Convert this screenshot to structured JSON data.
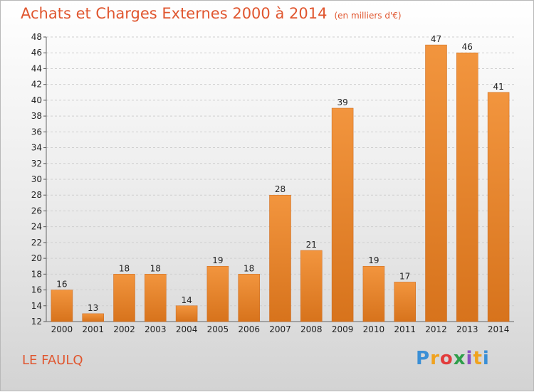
{
  "chart_data": {
    "type": "bar",
    "title": "Achats et Charges Externes 2000 à 2014",
    "subtitle": "(en milliers d'€)",
    "categories": [
      "2000",
      "2001",
      "2002",
      "2003",
      "2004",
      "2005",
      "2006",
      "2007",
      "2008",
      "2009",
      "2010",
      "2011",
      "2012",
      "2013",
      "2014"
    ],
    "values": [
      16,
      13,
      18,
      18,
      14,
      19,
      18,
      28,
      21,
      39,
      19,
      17,
      47,
      46,
      41
    ],
    "ylim": [
      12,
      48
    ],
    "yticks": [
      12,
      14,
      16,
      18,
      20,
      22,
      24,
      26,
      28,
      30,
      32,
      34,
      36,
      38,
      40,
      42,
      44,
      46,
      48
    ],
    "grid": true,
    "bar_color": "#f2953e",
    "bar_color_dark": "#d7731c"
  },
  "footer": {
    "commune": "LE FAULQ",
    "logo_text": "Proxiti",
    "logo_colors": [
      "#3a8fd6",
      "#f0a21e",
      "#e23c3c",
      "#2e9e4a",
      "#8a4fc2",
      "#f0a21e",
      "#3a8fd6"
    ]
  },
  "colors": {
    "title": "#e0562f",
    "axis_text": "#222222",
    "grid": "#cfcfcf"
  }
}
